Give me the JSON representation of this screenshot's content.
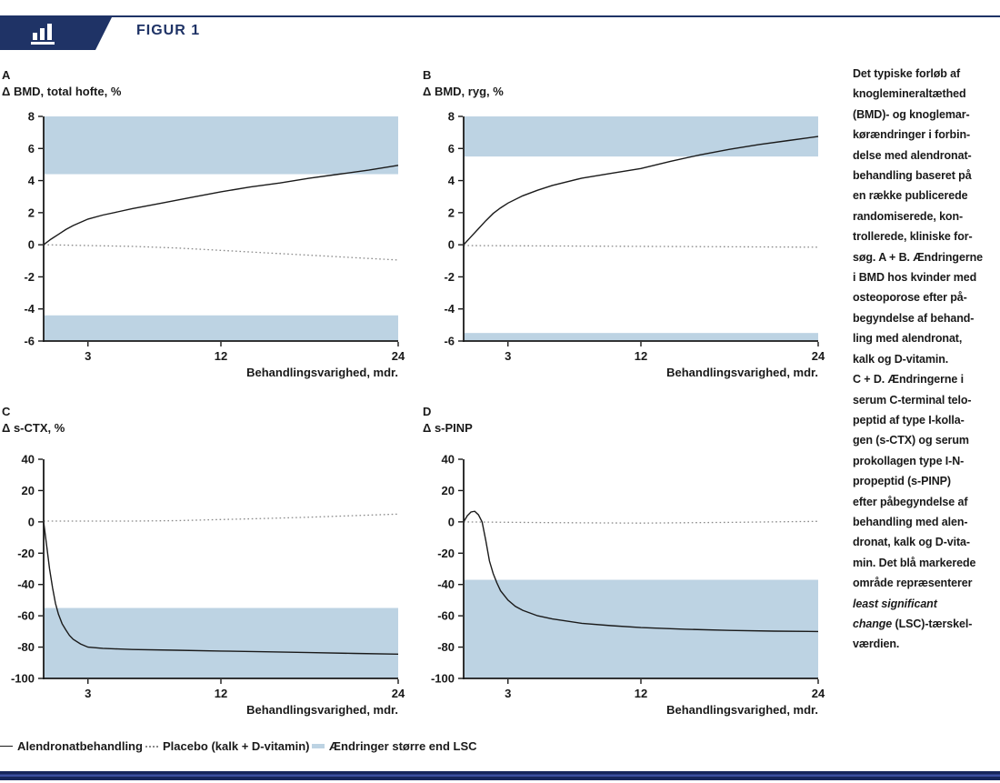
{
  "header": {
    "title": "FIGUR 1",
    "icon": "bar-chart-icon"
  },
  "colors": {
    "navy": "#1f3366",
    "lsc_blue": "#bdd3e3",
    "line_black": "#1a1a1a",
    "placebo_gray": "#8a8a8a"
  },
  "caption": {
    "text_before": "Det typiske forløb af\nknoglemineraltæthed\n(BMD)- og knoglemar-\nkørændringer i forbin-\ndelse med alendronat-\nbehandling baseret på\nen række publicerede\nrandomiserede, kon-\ntrollerede, kliniske for-\nsøg. A + B. Ændringerne\ni BMD hos kvinder med\nosteoporose efter på-\nbegyndelse af behand-\nling med alendronat,\nkalk og D-vitamin.\nC + D. Ændringerne i\nserum C-terminal telo-\npeptid af type I-kolla-\ngen (s-CTX) og serum\nprokollagen type I-N-\npropeptid (s-PINP)\nefter påbegyndelse af\nbehandling med alen-\ndronat, kalk og D-vita-\nmin. Det blå markerede\nområde repræsenterer\n",
    "text_italic": "least significant\nchange",
    "text_after": " (LSC)-tærskel-\nværdien."
  },
  "legend": {
    "items": [
      {
        "label": "Alendronatbehandling",
        "swatch": "solid-line"
      },
      {
        "label": "Placebo (kalk + D-vitamin)",
        "swatch": "dotted-line"
      },
      {
        "label": "Ændringer større end LSC",
        "swatch": "blue-area"
      }
    ]
  },
  "chart_data": [
    {
      "type": "line",
      "panel": "A",
      "ylabel": "Δ BMD, total hofte, %",
      "xlabel": "Behandlingsvarighed, mdr.",
      "xlim": [
        0,
        24
      ],
      "xticks": [
        3,
        12,
        24
      ],
      "ylim": [
        -6,
        8
      ],
      "yticks": [
        8,
        6,
        4,
        2,
        0,
        -2,
        -4,
        -6
      ],
      "grid": false,
      "legend_position": "bottom-figure",
      "lsc_bands": [
        [
          4.4,
          8
        ],
        [
          -6,
          -4.4
        ]
      ],
      "series": [
        {
          "name": "Alendronatbehandling",
          "style": "solid",
          "points": [
            [
              0,
              0
            ],
            [
              0.5,
              0.35
            ],
            [
              1,
              0.65
            ],
            [
              1.5,
              0.95
            ],
            [
              2,
              1.2
            ],
            [
              3,
              1.6
            ],
            [
              4,
              1.85
            ],
            [
              5,
              2.05
            ],
            [
              6,
              2.25
            ],
            [
              8,
              2.6
            ],
            [
              10,
              2.95
            ],
            [
              12,
              3.3
            ],
            [
              14,
              3.6
            ],
            [
              16,
              3.85
            ],
            [
              18,
              4.15
            ],
            [
              20,
              4.4
            ],
            [
              22,
              4.65
            ],
            [
              24,
              4.95
            ]
          ]
        },
        {
          "name": "Placebo (kalk + D-vitamin)",
          "style": "dotted",
          "points": [
            [
              0,
              0
            ],
            [
              3,
              -0.05
            ],
            [
              6,
              -0.1
            ],
            [
              9,
              -0.2
            ],
            [
              12,
              -0.35
            ],
            [
              15,
              -0.5
            ],
            [
              18,
              -0.65
            ],
            [
              21,
              -0.8
            ],
            [
              24,
              -0.95
            ]
          ]
        }
      ]
    },
    {
      "type": "line",
      "panel": "B",
      "ylabel": "Δ BMD, ryg, %",
      "xlabel": "Behandlingsvarighed, mdr.",
      "xlim": [
        0,
        24
      ],
      "xticks": [
        3,
        12,
        24
      ],
      "ylim": [
        -6,
        8
      ],
      "yticks": [
        8,
        6,
        4,
        2,
        0,
        -2,
        -4,
        -6
      ],
      "grid": false,
      "legend_position": "bottom-figure",
      "lsc_bands": [
        [
          5.5,
          8
        ],
        [
          -6,
          -5.5
        ]
      ],
      "series": [
        {
          "name": "Alendronatbehandling",
          "style": "solid",
          "points": [
            [
              0,
              0
            ],
            [
              0.5,
              0.5
            ],
            [
              1,
              1.0
            ],
            [
              1.5,
              1.5
            ],
            [
              2,
              1.95
            ],
            [
              2.5,
              2.3
            ],
            [
              3,
              2.6
            ],
            [
              4,
              3.05
            ],
            [
              5,
              3.4
            ],
            [
              6,
              3.7
            ],
            [
              8,
              4.15
            ],
            [
              10,
              4.45
            ],
            [
              12,
              4.75
            ],
            [
              14,
              5.2
            ],
            [
              16,
              5.6
            ],
            [
              18,
              5.95
            ],
            [
              20,
              6.25
            ],
            [
              22,
              6.5
            ],
            [
              24,
              6.75
            ]
          ]
        },
        {
          "name": "Placebo (kalk + D-vitamin)",
          "style": "dotted",
          "points": [
            [
              0,
              -0.05
            ],
            [
              12,
              -0.1
            ],
            [
              24,
              -0.15
            ]
          ]
        }
      ]
    },
    {
      "type": "line",
      "panel": "C",
      "ylabel": "Δ s-CTX, %",
      "xlabel": "Behandlingsvarighed, mdr.",
      "xlim": [
        0,
        24
      ],
      "xticks": [
        3,
        12,
        24
      ],
      "ylim": [
        -100,
        40
      ],
      "yticks": [
        40,
        20,
        0,
        -20,
        -40,
        -60,
        -80,
        -100
      ],
      "grid": false,
      "legend_position": "bottom-figure",
      "lsc_bands": [
        [
          -100,
          -55
        ]
      ],
      "series": [
        {
          "name": "Alendronatbehandling",
          "style": "solid",
          "points": [
            [
              0,
              0
            ],
            [
              0.2,
              -15
            ],
            [
              0.4,
              -30
            ],
            [
              0.6,
              -42
            ],
            [
              0.8,
              -52
            ],
            [
              1,
              -59
            ],
            [
              1.25,
              -65
            ],
            [
              1.5,
              -69
            ],
            [
              1.75,
              -72.5
            ],
            [
              2,
              -75
            ],
            [
              2.5,
              -78
            ],
            [
              3,
              -80
            ],
            [
              4,
              -80.8
            ],
            [
              5,
              -81.2
            ],
            [
              6,
              -81.5
            ],
            [
              9,
              -82
            ],
            [
              12,
              -82.5
            ],
            [
              15,
              -83
            ],
            [
              18,
              -83.5
            ],
            [
              21,
              -84
            ],
            [
              24,
              -84.5
            ]
          ]
        },
        {
          "name": "Placebo (kalk + D-vitamin)",
          "style": "dotted",
          "points": [
            [
              0,
              0.5
            ],
            [
              6,
              0.5
            ],
            [
              9,
              0.8
            ],
            [
              12,
              1.5
            ],
            [
              15,
              2.2
            ],
            [
              18,
              3
            ],
            [
              21,
              4
            ],
            [
              24,
              5
            ]
          ]
        }
      ]
    },
    {
      "type": "line",
      "panel": "D",
      "ylabel": "Δ s-PINP",
      "xlabel": "Behandlingsvarighed, mdr.",
      "xlim": [
        0,
        24
      ],
      "xticks": [
        3,
        12,
        24
      ],
      "ylim": [
        -100,
        40
      ],
      "yticks": [
        40,
        20,
        0,
        -20,
        -40,
        -60,
        -80,
        -100
      ],
      "grid": false,
      "legend_position": "bottom-figure",
      "lsc_bands": [
        [
          -100,
          -37
        ]
      ],
      "series": [
        {
          "name": "Alendronatbehandling",
          "style": "solid",
          "points": [
            [
              0,
              0
            ],
            [
              0.25,
              4
            ],
            [
              0.5,
              6.3
            ],
            [
              0.75,
              6.8
            ],
            [
              1,
              4.5
            ],
            [
              1.25,
              0
            ],
            [
              1.5,
              -12
            ],
            [
              1.75,
              -25
            ],
            [
              2,
              -33
            ],
            [
              2.25,
              -39
            ],
            [
              2.5,
              -44
            ],
            [
              3,
              -50
            ],
            [
              3.5,
              -54
            ],
            [
              4,
              -56.5
            ],
            [
              5,
              -60
            ],
            [
              6,
              -62
            ],
            [
              8,
              -64.8
            ],
            [
              10,
              -66.3
            ],
            [
              12,
              -67.5
            ],
            [
              15,
              -68.6
            ],
            [
              18,
              -69.3
            ],
            [
              21,
              -69.8
            ],
            [
              24,
              -70
            ]
          ]
        },
        {
          "name": "Placebo (kalk + D-vitamin)",
          "style": "dotted",
          "points": [
            [
              0,
              0
            ],
            [
              6,
              -0.5
            ],
            [
              12,
              -0.8
            ],
            [
              18,
              -0.3
            ],
            [
              24,
              0.3
            ]
          ]
        }
      ]
    }
  ]
}
